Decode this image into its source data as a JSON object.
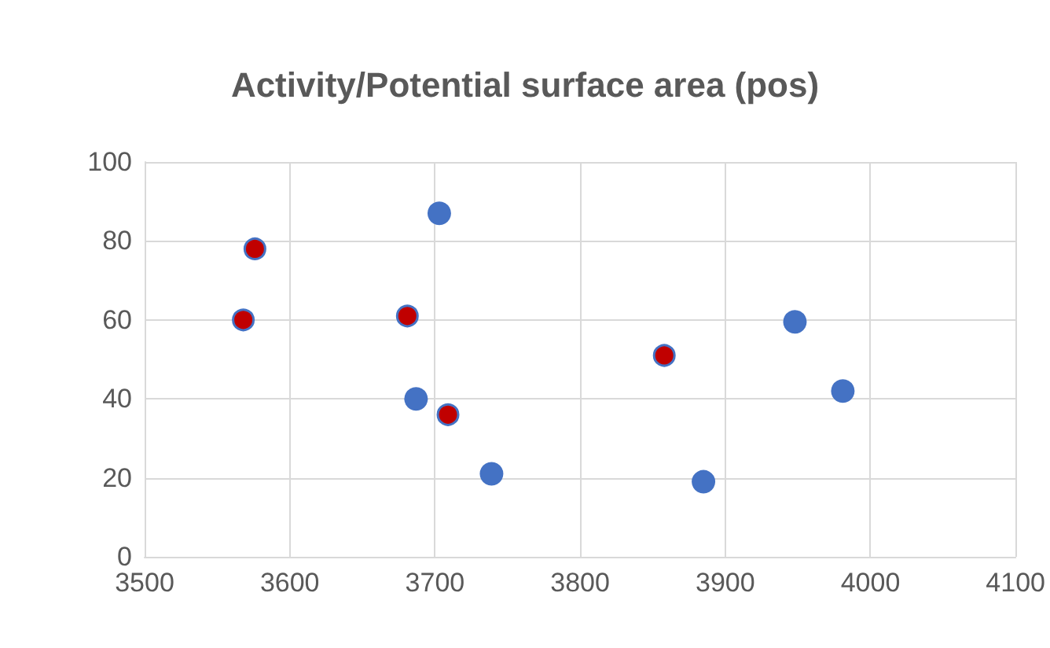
{
  "chart_data": {
    "type": "scatter",
    "title": "Activity/Potential surface area (pos)",
    "series": [
      {
        "color": "#4472c4",
        "x": [
          3703,
          3687,
          3739,
          3885,
          3948,
          3981
        ],
        "values": [
          87,
          40,
          21,
          19,
          59.5,
          42
        ]
      },
      {
        "color": "#c00000",
        "x": [
          3576,
          3568,
          3681,
          3709,
          3858
        ],
        "values": [
          78,
          60,
          61,
          36,
          51
        ]
      }
    ],
    "xlim": [
      3500,
      4100
    ],
    "xticks": [
      3500,
      3600,
      3700,
      3800,
      3900,
      4000,
      4100
    ],
    "ylim": [
      0,
      100
    ],
    "yticks": [
      0,
      20,
      40,
      60,
      80,
      100
    ],
    "grid": true,
    "marker": "circle"
  }
}
